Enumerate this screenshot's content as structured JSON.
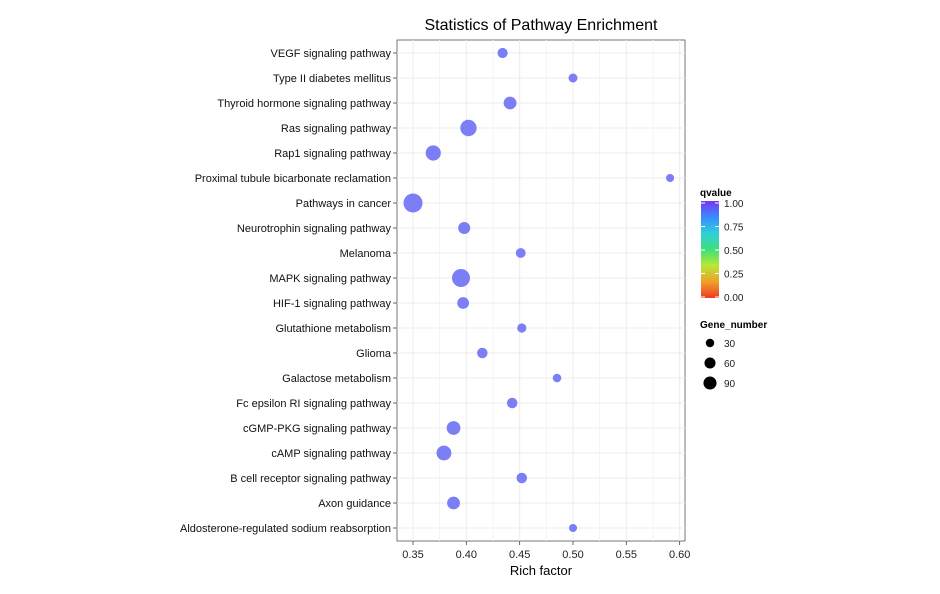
{
  "chart_data": {
    "type": "scatter",
    "title": "Statistics of Pathway Enrichment",
    "xlabel": "Rich factor",
    "ylabel": "",
    "xlim": [
      0.335,
      0.605
    ],
    "xticks": [
      "0.35",
      "0.40",
      "0.45",
      "0.50",
      "0.55",
      "0.60"
    ],
    "xtick_values": [
      0.35,
      0.4,
      0.45,
      0.5,
      0.55,
      0.6
    ],
    "grid": true,
    "legend_position": "right",
    "categories": [
      "VEGF signaling pathway",
      "Type II diabetes mellitus",
      "Thyroid hormone signaling pathway",
      "Ras signaling pathway",
      "Rap1 signaling pathway",
      "Proximal tubule bicarbonate reclamation",
      "Pathways in cancer",
      "Neurotrophin signaling pathway",
      "Melanoma",
      "MAPK signaling pathway",
      "HIF-1 signaling pathway",
      "Glutathione metabolism",
      "Glioma",
      "Galactose metabolism",
      "Fc epsilon RI signaling pathway",
      "cGMP-PKG signaling pathway",
      "cAMP signaling pathway",
      "B cell receptor signaling pathway",
      "Axon guidance",
      "Aldosterone-regulated sodium reabsorption"
    ],
    "rich_factor": [
      0.434,
      0.5,
      0.441,
      0.402,
      0.369,
      0.591,
      0.35,
      0.398,
      0.451,
      0.395,
      0.397,
      0.452,
      0.415,
      0.485,
      0.443,
      0.388,
      0.379,
      0.452,
      0.388,
      0.5
    ],
    "gene_number": [
      20,
      14,
      38,
      70,
      58,
      10,
      100,
      32,
      18,
      88,
      30,
      15,
      22,
      12,
      22,
      45,
      55,
      22,
      38,
      10
    ],
    "qvalue": [
      0.96,
      0.96,
      0.96,
      0.96,
      0.96,
      0.96,
      0.96,
      0.96,
      0.96,
      0.96,
      0.96,
      0.96,
      0.96,
      0.96,
      0.96,
      0.96,
      0.96,
      0.96,
      0.96,
      0.96
    ],
    "color_legend": {
      "title": "qvalue",
      "ticks": [
        "1.00",
        "0.75",
        "0.50",
        "0.25",
        "0.00"
      ],
      "tick_values": [
        1.0,
        0.75,
        0.5,
        0.25,
        0.0
      ],
      "gradient_colors": [
        "#7a34f2",
        "#3a8cff",
        "#2fd0d9",
        "#3de07a",
        "#b7e836",
        "#f0a028",
        "#ee3a24"
      ]
    },
    "size_legend": {
      "title": "Gene_number",
      "values": [
        30,
        60,
        90
      ],
      "labels": [
        "30",
        "60",
        "90"
      ]
    },
    "point_color": "#7b7ef5"
  }
}
